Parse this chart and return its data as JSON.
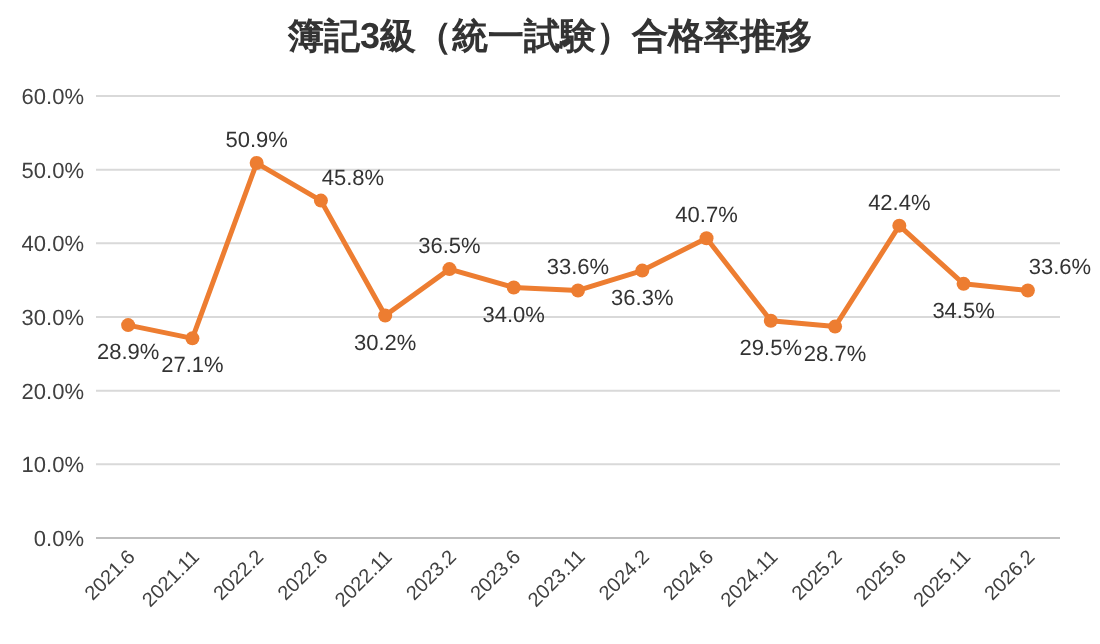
{
  "chart_data": {
    "type": "line",
    "title": "簿記3級（統一試験）合格率推移",
    "categories": [
      "2021.6",
      "2021.11",
      "2022.2",
      "2022.6",
      "2022.11",
      "2023.2",
      "2023.6",
      "2023.11",
      "2024.2",
      "2024.6",
      "2024.11",
      "2025.2",
      "2025.6",
      "2025.11",
      "2026.2"
    ],
    "series": [
      {
        "color": "#ed7d31",
        "values": [
          28.9,
          27.1,
          50.9,
          45.8,
          30.2,
          36.5,
          34.0,
          33.6,
          36.3,
          40.7,
          29.5,
          28.7,
          42.4,
          34.5,
          33.6
        ],
        "value_labels": [
          "28.9%",
          "27.1%",
          "50.9%",
          "45.8%",
          "30.2%",
          "36.5%",
          "34.0%",
          "33.6%",
          "36.3%",
          "40.7%",
          "29.5%",
          "28.7%",
          "42.4%",
          "34.5%",
          "33.6%"
        ]
      }
    ],
    "ylim": [
      0,
      60
    ],
    "yticks": [
      {
        "value": 0,
        "label": "0.0%"
      },
      {
        "value": 10,
        "label": "10.0%"
      },
      {
        "value": 20,
        "label": "20.0%"
      },
      {
        "value": 30,
        "label": "30.0%"
      },
      {
        "value": 40,
        "label": "40.0%"
      },
      {
        "value": 50,
        "label": "50.0%"
      },
      {
        "value": 60,
        "label": "60.0%"
      }
    ],
    "grid": "y",
    "marker": "circle",
    "line_style": "solid"
  }
}
